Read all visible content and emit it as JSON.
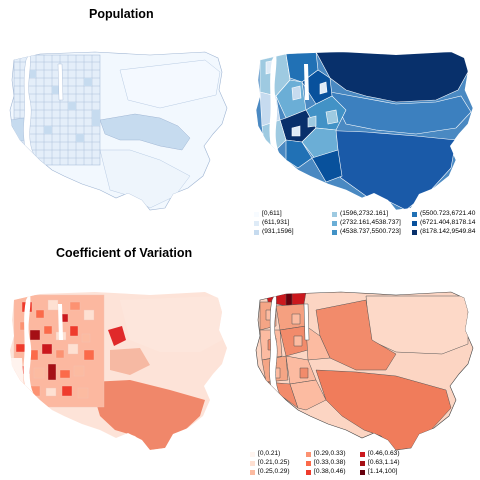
{
  "titles": {
    "population": "Population",
    "cov": "Coefficient of Variation"
  },
  "legends": {
    "population": [
      {
        "label": "[0,611]",
        "color": "#f7fbff"
      },
      {
        "label": "(611,931]",
        "color": "#deebf7"
      },
      {
        "label": "(931,1596]",
        "color": "#c6dbef"
      },
      {
        "label": "(1596,2732.161]",
        "color": "#9ecae1"
      },
      {
        "label": "(2732.161,4538.737]",
        "color": "#6baed6"
      },
      {
        "label": "(4538.737,5500.723]",
        "color": "#4292c6"
      },
      {
        "label": "(5500.723,6721.40",
        "color": "#2171b5"
      },
      {
        "label": "(6721.404,8178.14",
        "color": "#08519c"
      },
      {
        "label": "(8178.142,9549.84",
        "color": "#08306b"
      }
    ],
    "cov": [
      {
        "label": "[0,0.21)",
        "color": "#fff5f0"
      },
      {
        "label": "[0.21,0.25)",
        "color": "#fee0d2"
      },
      {
        "label": "[0.25,0.29)",
        "color": "#fcbba1"
      },
      {
        "label": "[0.29,0.33)",
        "color": "#fc9272"
      },
      {
        "label": "[0.33,0.38)",
        "color": "#fb6a4a"
      },
      {
        "label": "[0.38,0.46)",
        "color": "#ef3b2c"
      },
      {
        "label": "[0.46,0.63)",
        "color": "#cb181d"
      },
      {
        "label": "[0.63,1.14)",
        "color": "#a50f15"
      },
      {
        "label": "[1.14,100]",
        "color": "#67000d"
      }
    ]
  },
  "colors": {
    "water": "#ffffff",
    "tract_border_light": "#aebfd6",
    "tract_border_dark": "#555555",
    "region_outline": "#9a9a9a"
  }
}
